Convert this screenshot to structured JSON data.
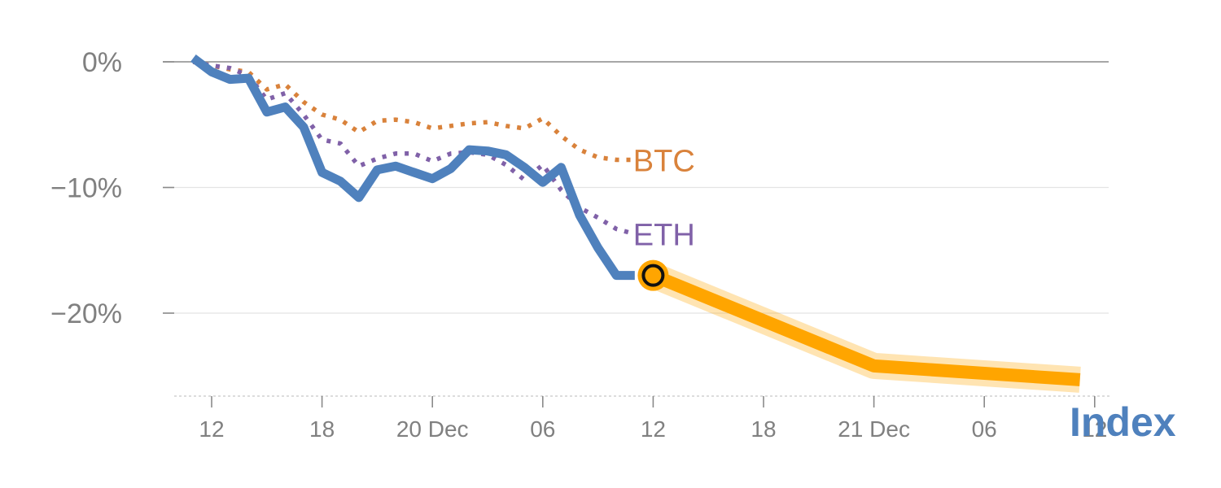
{
  "chart_data": {
    "type": "line",
    "y_unit": "%",
    "ylim": [
      -26.5,
      1
    ],
    "grid": true,
    "y_ticks": [
      {
        "value": 0,
        "label": "0%"
      },
      {
        "value": -10,
        "label": "−10%"
      },
      {
        "value": -20,
        "label": "−20%"
      }
    ],
    "x_ticks": [
      {
        "x": 12,
        "label": "12"
      },
      {
        "x": 18,
        "label": "18"
      },
      {
        "x": 24,
        "label": "20 Dec"
      },
      {
        "x": 30,
        "label": "06"
      },
      {
        "x": 36,
        "label": "12"
      },
      {
        "x": 42,
        "label": "18"
      },
      {
        "x": 48,
        "label": "21 Dec"
      },
      {
        "x": 54,
        "label": "06"
      },
      {
        "x": 60,
        "label": "12"
      }
    ],
    "series": [
      {
        "name": "BTC",
        "style": "dotted",
        "color": "#d9823b",
        "x": [
          11,
          12,
          13,
          14,
          15,
          16,
          17,
          18,
          19,
          20,
          21,
          22,
          23,
          24,
          25,
          26,
          27,
          28,
          29,
          30,
          31,
          32,
          33,
          34,
          35
        ],
        "values": [
          0,
          -0.3,
          -0.6,
          -0.8,
          -2.2,
          -1.8,
          -3.2,
          -4.2,
          -4.6,
          -5.6,
          -4.7,
          -4.6,
          -4.8,
          -5.3,
          -5.1,
          -4.9,
          -4.8,
          -5.1,
          -5.3,
          -4.5,
          -5.9,
          -7.0,
          -7.6,
          -7.8,
          -7.8
        ],
        "label": "BTC"
      },
      {
        "name": "ETH",
        "style": "dotted",
        "color": "#8061a8",
        "x": [
          11,
          12,
          13,
          14,
          15,
          16,
          17,
          18,
          19,
          20,
          21,
          22,
          23,
          24,
          25,
          26,
          27,
          28,
          29,
          30,
          31,
          32,
          33,
          34,
          35
        ],
        "values": [
          0,
          -0.3,
          -0.5,
          -1.1,
          -3.0,
          -2.5,
          -4.2,
          -6.2,
          -6.5,
          -8.3,
          -7.7,
          -7.3,
          -7.3,
          -7.9,
          -7.3,
          -7.2,
          -7.4,
          -8.2,
          -9.4,
          -8.2,
          -10.2,
          -11.6,
          -12.4,
          -13.3,
          -13.7
        ],
        "label": "ETH"
      },
      {
        "name": "Index",
        "style": "solid",
        "color": "#4f81bd",
        "x": [
          11,
          12,
          13,
          14,
          15,
          16,
          17,
          18,
          19,
          20,
          21,
          22,
          23,
          24,
          25,
          26,
          27,
          28,
          29,
          30,
          31,
          32,
          33,
          34,
          35
        ],
        "values": [
          0.3,
          -0.8,
          -1.4,
          -1.3,
          -4.0,
          -3.6,
          -5.2,
          -8.8,
          -9.5,
          -10.8,
          -8.6,
          -8.3,
          -8.8,
          -9.3,
          -8.5,
          -7.0,
          -7.1,
          -7.4,
          -8.4,
          -9.6,
          -8.4,
          -12.2,
          -14.8,
          -17.0,
          -17.0
        ],
        "label": "Index"
      },
      {
        "name": "",
        "style": "highlight",
        "color": "#ffa500",
        "x": [
          36,
          48,
          49,
          59.2
        ],
        "values": [
          -17.0,
          -24.2,
          -24.3,
          -25.3
        ]
      }
    ],
    "marker": {
      "x": 36,
      "y": -17.0,
      "color": "#ffa500"
    }
  }
}
